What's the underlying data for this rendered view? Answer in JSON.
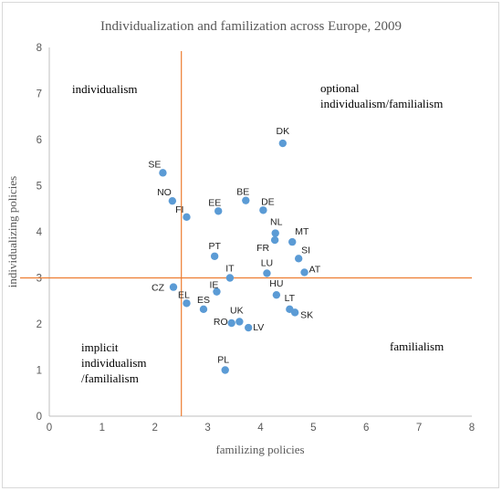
{
  "chart_data": {
    "type": "scatter",
    "title": "Individualization and familization across Europe, 2009",
    "xlabel": "familizing policies",
    "ylabel": "individualizing policies",
    "xlim": [
      0,
      8
    ],
    "ylim": [
      0,
      8
    ],
    "xticks": [
      "0",
      "1",
      "2",
      "3",
      "4",
      "5",
      "6",
      "7",
      "8"
    ],
    "yticks": [
      "0",
      "1",
      "2",
      "3",
      "4",
      "5",
      "6",
      "7",
      "8"
    ],
    "grid": false,
    "reference_lines": {
      "x": 2.5,
      "y": 3.0,
      "color": "#ed7d31"
    },
    "point_color": "#5b9bd5",
    "points": [
      {
        "label": "DK",
        "x": 4.42,
        "y": 5.92
      },
      {
        "label": "SE",
        "x": 2.15,
        "y": 5.28
      },
      {
        "label": "NO",
        "x": 2.33,
        "y": 4.67
      },
      {
        "label": "FI",
        "x": 2.6,
        "y": 4.32
      },
      {
        "label": "EE",
        "x": 3.2,
        "y": 4.45
      },
      {
        "label": "BE",
        "x": 3.72,
        "y": 4.68
      },
      {
        "label": "DE",
        "x": 4.05,
        "y": 4.47
      },
      {
        "label": "NL",
        "x": 4.28,
        "y": 3.97
      },
      {
        "label": "MT",
        "x": 4.6,
        "y": 3.78
      },
      {
        "label": "FR",
        "x": 4.27,
        "y": 3.82
      },
      {
        "label": "SI",
        "x": 4.72,
        "y": 3.42
      },
      {
        "label": "PT",
        "x": 3.13,
        "y": 3.47
      },
      {
        "label": "LU",
        "x": 4.12,
        "y": 3.1
      },
      {
        "label": "AT",
        "x": 4.83,
        "y": 3.12
      },
      {
        "label": "IT",
        "x": 3.42,
        "y": 3.0
      },
      {
        "label": "CZ",
        "x": 2.35,
        "y": 2.8
      },
      {
        "label": "IE",
        "x": 3.17,
        "y": 2.7
      },
      {
        "label": "HU",
        "x": 4.3,
        "y": 2.63
      },
      {
        "label": "EL",
        "x": 2.6,
        "y": 2.45
      },
      {
        "label": "ES",
        "x": 2.92,
        "y": 2.32
      },
      {
        "label": "LT",
        "x": 4.55,
        "y": 2.32
      },
      {
        "label": "SK",
        "x": 4.65,
        "y": 2.25
      },
      {
        "label": "UK",
        "x": 3.6,
        "y": 2.05
      },
      {
        "label": "RO",
        "x": 3.45,
        "y": 2.02
      },
      {
        "label": "LV",
        "x": 3.77,
        "y": 1.92
      },
      {
        "label": "PL",
        "x": 3.33,
        "y": 1.0
      }
    ],
    "annotations": [
      {
        "id": "q-individualism",
        "lines": [
          "individualism"
        ]
      },
      {
        "id": "q-optional",
        "lines": [
          "optional",
          "individualism/familialism"
        ]
      },
      {
        "id": "q-implicit",
        "lines": [
          "implicit",
          "individualism",
          "/familialism"
        ]
      },
      {
        "id": "q-familialism",
        "lines": [
          "familialism"
        ]
      }
    ]
  }
}
